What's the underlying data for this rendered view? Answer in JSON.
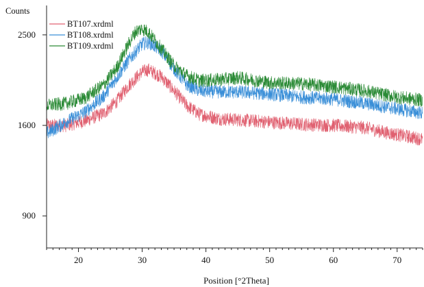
{
  "chart_data": {
    "type": "line",
    "title": "",
    "xlabel": "Position [°2Theta]",
    "ylabel": "Counts",
    "xlim": [
      15,
      74
    ],
    "ylim": [
      700,
      2900
    ],
    "xticks": [
      20,
      30,
      40,
      50,
      60,
      70
    ],
    "yticks": [
      900,
      1600,
      2500
    ],
    "y_scale": "sqrt",
    "grid": false,
    "legend_position": "top-left",
    "series": [
      {
        "name": "BT107.xrdml",
        "color": "#e06070",
        "points": [
          [
            15,
            1600
          ],
          [
            18,
            1600
          ],
          [
            21,
            1640
          ],
          [
            24,
            1710
          ],
          [
            26,
            1820
          ],
          [
            28,
            1980
          ],
          [
            30,
            2110
          ],
          [
            31,
            2130
          ],
          [
            33,
            2060
          ],
          [
            35,
            1920
          ],
          [
            37,
            1780
          ],
          [
            39,
            1700
          ],
          [
            42,
            1660
          ],
          [
            45,
            1650
          ],
          [
            50,
            1630
          ],
          [
            55,
            1610
          ],
          [
            60,
            1600
          ],
          [
            65,
            1580
          ],
          [
            68,
            1540
          ],
          [
            71,
            1510
          ],
          [
            74,
            1480
          ]
        ]
      },
      {
        "name": "BT108.xrdml",
        "color": "#3a8fd8",
        "points": [
          [
            15,
            1530
          ],
          [
            16,
            1560
          ],
          [
            18,
            1630
          ],
          [
            21,
            1720
          ],
          [
            24,
            1870
          ],
          [
            26,
            2050
          ],
          [
            28,
            2240
          ],
          [
            30,
            2400
          ],
          [
            31,
            2420
          ],
          [
            33,
            2330
          ],
          [
            35,
            2140
          ],
          [
            37,
            1980
          ],
          [
            39,
            1920
          ],
          [
            42,
            1910
          ],
          [
            45,
            1910
          ],
          [
            50,
            1890
          ],
          [
            55,
            1860
          ],
          [
            60,
            1840
          ],
          [
            65,
            1800
          ],
          [
            70,
            1750
          ],
          [
            74,
            1710
          ]
        ]
      },
      {
        "name": "BT109.xrdml",
        "color": "#2a8a35",
        "points": [
          [
            15,
            1780
          ],
          [
            18,
            1800
          ],
          [
            21,
            1850
          ],
          [
            24,
            1980
          ],
          [
            26,
            2150
          ],
          [
            28,
            2420
          ],
          [
            29,
            2540
          ],
          [
            30,
            2570
          ],
          [
            31,
            2530
          ],
          [
            33,
            2350
          ],
          [
            35,
            2170
          ],
          [
            37,
            2070
          ],
          [
            39,
            2020
          ],
          [
            42,
            2030
          ],
          [
            45,
            2050
          ],
          [
            50,
            2000
          ],
          [
            55,
            1990
          ],
          [
            60,
            1960
          ],
          [
            65,
            1920
          ],
          [
            70,
            1860
          ],
          [
            74,
            1830
          ]
        ]
      }
    ]
  }
}
